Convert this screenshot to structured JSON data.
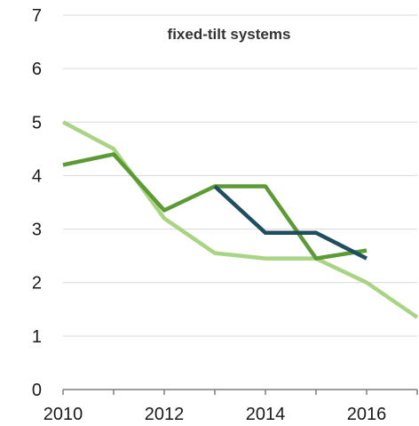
{
  "chart_data": {
    "type": "line",
    "title": "fixed-tilt systems",
    "xlabel": "",
    "ylabel": "",
    "xlim": [
      2010,
      2017
    ],
    "ylim": [
      0,
      7
    ],
    "x_ticks": [
      2010,
      2012,
      2014,
      2016
    ],
    "y_ticks": [
      0,
      1,
      2,
      3,
      4,
      5,
      6,
      7
    ],
    "grid": true,
    "legend": "none",
    "series": [
      {
        "color": "#a8d483",
        "x": [
          2010,
          2011,
          2012,
          2013,
          2014,
          2015,
          2016,
          2017
        ],
        "y": [
          5.0,
          4.5,
          3.2,
          2.55,
          2.45,
          2.45,
          2.0,
          1.35
        ]
      },
      {
        "color": "#5b9a34",
        "x": [
          2010,
          2011,
          2012,
          2013,
          2014,
          2015,
          2016
        ],
        "y": [
          4.2,
          4.4,
          3.35,
          3.8,
          3.8,
          2.45,
          2.6
        ]
      },
      {
        "color": "#1f4e60",
        "x": [
          2013,
          2014,
          2015,
          2016
        ],
        "y": [
          3.8,
          2.93,
          2.93,
          2.45
        ]
      }
    ]
  }
}
